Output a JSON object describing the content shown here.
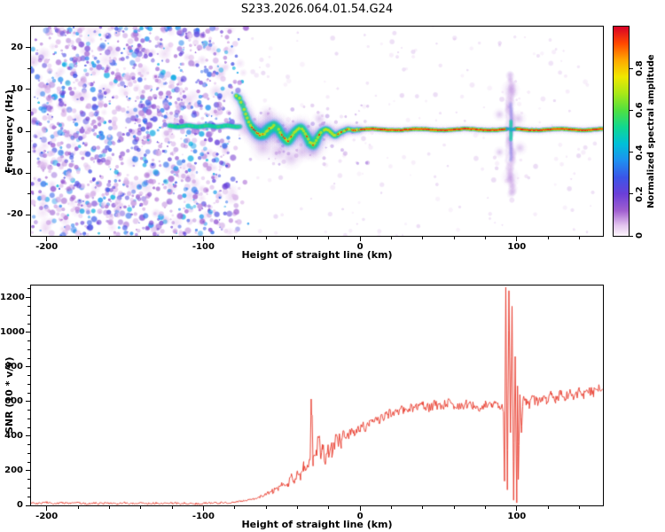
{
  "title": "S233.2026.064.01.54.G24",
  "colorbar": {
    "label": "Normalized spectral amplitude",
    "ticks": [
      0,
      0.2,
      0.4,
      0.6,
      0.8
    ],
    "tick_labels": [
      "0",
      "0.2",
      "0.4",
      "0.6",
      "0.8"
    ],
    "range": [
      0,
      1
    ],
    "stops": [
      {
        "v": 0.0,
        "c": "#fdf6fc"
      },
      {
        "v": 0.05,
        "c": "#e3c4ee"
      },
      {
        "v": 0.12,
        "c": "#a05fd0"
      },
      {
        "v": 0.2,
        "c": "#6b3fd8"
      },
      {
        "v": 0.28,
        "c": "#3b55e8"
      },
      {
        "v": 0.36,
        "c": "#1e90f0"
      },
      {
        "v": 0.44,
        "c": "#00c0d8"
      },
      {
        "v": 0.52,
        "c": "#10d890"
      },
      {
        "v": 0.6,
        "c": "#50e040"
      },
      {
        "v": 0.68,
        "c": "#a8e818"
      },
      {
        "v": 0.76,
        "c": "#f0e800"
      },
      {
        "v": 0.84,
        "c": "#ffa800"
      },
      {
        "v": 0.92,
        "c": "#ff4800"
      },
      {
        "v": 1.0,
        "c": "#d80028"
      }
    ]
  },
  "top_panel": {
    "xlabel": "Height of straight line (km)",
    "ylabel": "Frequency (Hz)",
    "xlim": [
      -210,
      155
    ],
    "ylim": [
      -25,
      25
    ],
    "xticks": [
      -200,
      -100,
      0,
      100
    ],
    "yticks": [
      -20,
      -10,
      0,
      10,
      20
    ],
    "x_minor_step": 20,
    "y_minor_step": 5
  },
  "bottom_panel": {
    "xlabel": "Height of straight line (km)",
    "ylabel": "SNR (10 * v/v)",
    "xlim": [
      -210,
      155
    ],
    "ylim": [
      0,
      1270
    ],
    "xticks": [
      -200,
      -100,
      0,
      100
    ],
    "yticks": [
      0,
      200,
      400,
      600,
      800,
      1000,
      1200
    ],
    "x_minor_step": 20,
    "y_minor_step": 50
  },
  "chart_data": [
    {
      "type": "heatmap",
      "title": "S233.2026.064.01.54.G24",
      "xlabel": "Height of straight line (km)",
      "ylabel": "Frequency (Hz)",
      "colorbar_label": "Normalized spectral amplitude",
      "xlim": [
        -210,
        155
      ],
      "ylim": [
        -25,
        25
      ],
      "colormap": "rainbow",
      "noise_region": {
        "x_start": -210,
        "x_end": -70,
        "amplitude_range": [
          0.05,
          0.42
        ]
      },
      "sparse_noise": {
        "x_start": -70,
        "x_end": 155,
        "amplitude_range": [
          0.03,
          0.09
        ]
      },
      "pre_signal_bar": {
        "x_start": -122,
        "x_end": -76,
        "freq": 1.2,
        "amplitude": 0.6
      },
      "trace": [
        [
          -79,
          8.5,
          1.6
        ],
        [
          -77,
          7.8,
          1.8
        ],
        [
          -75,
          6.2,
          1.8
        ],
        [
          -73,
          4.2,
          2.0
        ],
        [
          -71,
          2.2,
          2.2
        ],
        [
          -69,
          0.9,
          2.4
        ],
        [
          -67,
          0.0,
          2.6
        ],
        [
          -64,
          -0.9,
          2.8
        ],
        [
          -61,
          -0.6,
          3.0
        ],
        [
          -58,
          0.6,
          3.0
        ],
        [
          -55,
          1.3,
          2.8
        ],
        [
          -52,
          0.4,
          2.6
        ],
        [
          -50,
          -0.8,
          2.6
        ],
        [
          -48,
          -1.8,
          2.6
        ],
        [
          -46,
          -2.3,
          2.8
        ],
        [
          -44,
          -1.4,
          2.8
        ],
        [
          -42,
          -0.4,
          2.6
        ],
        [
          -40,
          0.4,
          2.4
        ],
        [
          -38,
          0.9,
          2.4
        ],
        [
          -36,
          0.1,
          2.4
        ],
        [
          -34,
          -1.2,
          2.6
        ],
        [
          -32,
          -2.6,
          2.8
        ],
        [
          -30,
          -3.2,
          2.8
        ],
        [
          -28,
          -2.2,
          2.6
        ],
        [
          -26,
          -0.9,
          2.2
        ],
        [
          -24,
          0.1,
          2.0
        ],
        [
          -22,
          0.5,
          1.8
        ],
        [
          -20,
          0.1,
          1.8
        ],
        [
          -18,
          -0.6,
          1.8
        ],
        [
          -16,
          -1.1,
          1.8
        ],
        [
          -14,
          -0.7,
          1.6
        ],
        [
          -12,
          -0.2,
          1.6
        ],
        [
          -10,
          0.2,
          1.5
        ],
        [
          -8,
          0.5,
          1.5
        ],
        [
          -6,
          0.3,
          1.4
        ],
        [
          -4,
          0.2,
          1.4
        ],
        [
          -2,
          0.3,
          1.4
        ],
        [
          0,
          0.4,
          1.4
        ]
      ],
      "red_zones": [
        [
          -70,
          -58
        ],
        [
          -50,
          -44
        ],
        [
          -34,
          -25
        ],
        [
          -15,
          0
        ]
      ],
      "flat_line": {
        "x_start": 0,
        "x_end": 155,
        "freq": 0.4,
        "amplitude": 0.95,
        "gap": [
          93.5,
          99
        ]
      },
      "disturbance": {
        "x": 96.3,
        "freq_extent": [
          -15,
          14
        ]
      },
      "halo_blobs": [
        [
          -74,
          3.5,
          3
        ],
        [
          -62,
          -4,
          3.5
        ],
        [
          -52,
          -5,
          3.2
        ],
        [
          -44,
          -6.5,
          3
        ],
        [
          -37,
          -5,
          2.8
        ],
        [
          -59,
          4,
          2.5
        ],
        [
          -30,
          -5,
          2.5
        ],
        [
          -26,
          3,
          2
        ],
        [
          89,
          4,
          1.8
        ],
        [
          89,
          -5,
          1.6
        ],
        [
          101,
          3,
          2.2
        ],
        [
          102,
          -4,
          2
        ],
        [
          96,
          10,
          2.5
        ],
        [
          96,
          -11,
          2.5
        ]
      ]
    },
    {
      "type": "line",
      "xlabel": "Height of straight line (km)",
      "ylabel": "SNR (10 * v/v)",
      "xlim": [
        -210,
        155
      ],
      "ylim": [
        0,
        1270
      ],
      "color": "#e8392a",
      "no_jitter_range": [
        91,
        104
      ],
      "anchors": [
        [
          -210,
          14
        ],
        [
          -205,
          10
        ],
        [
          -200,
          16
        ],
        [
          -195,
          9
        ],
        [
          -190,
          14
        ],
        [
          -185,
          11
        ],
        [
          -180,
          15
        ],
        [
          -175,
          9
        ],
        [
          -170,
          13
        ],
        [
          -165,
          10
        ],
        [
          -160,
          14
        ],
        [
          -155,
          10
        ],
        [
          -150,
          13
        ],
        [
          -145,
          9
        ],
        [
          -140,
          14
        ],
        [
          -135,
          10
        ],
        [
          -130,
          13
        ],
        [
          -125,
          10
        ],
        [
          -120,
          13
        ],
        [
          -115,
          10
        ],
        [
          -110,
          13
        ],
        [
          -105,
          10
        ],
        [
          -100,
          12
        ],
        [
          -95,
          13
        ],
        [
          -90,
          14
        ],
        [
          -85,
          16
        ],
        [
          -80,
          20
        ],
        [
          -76,
          24
        ],
        [
          -72,
          30
        ],
        [
          -68,
          38
        ],
        [
          -64,
          48
        ],
        [
          -60,
          62
        ],
        [
          -56,
          80
        ],
        [
          -52,
          100
        ],
        [
          -50,
          115
        ],
        [
          -48,
          135
        ],
        [
          -46,
          120
        ],
        [
          -44,
          160
        ],
        [
          -42,
          145
        ],
        [
          -40,
          185
        ],
        [
          -38,
          165
        ],
        [
          -36,
          215
        ],
        [
          -34,
          190
        ],
        [
          -32,
          245
        ],
        [
          -31,
          600
        ],
        [
          -30,
          240
        ],
        [
          -28,
          270
        ],
        [
          -26,
          480
        ],
        [
          -25,
          260
        ],
        [
          -24,
          300
        ],
        [
          -22,
          285
        ],
        [
          -20,
          330
        ],
        [
          -18,
          310
        ],
        [
          -16,
          360
        ],
        [
          -14,
          345
        ],
        [
          -12,
          390
        ],
        [
          -10,
          420
        ],
        [
          -8,
          400
        ],
        [
          -6,
          430
        ],
        [
          -4,
          415
        ],
        [
          -2,
          440
        ],
        [
          0,
          450
        ],
        [
          2,
          460
        ],
        [
          4,
          445
        ],
        [
          6,
          470
        ],
        [
          8,
          480
        ],
        [
          10,
          495
        ],
        [
          12,
          485
        ],
        [
          14,
          505
        ],
        [
          16,
          515
        ],
        [
          18,
          525
        ],
        [
          20,
          535
        ],
        [
          24,
          545
        ],
        [
          28,
          555
        ],
        [
          32,
          560
        ],
        [
          36,
          565
        ],
        [
          40,
          575
        ],
        [
          44,
          560
        ],
        [
          48,
          585
        ],
        [
          52,
          570
        ],
        [
          56,
          595
        ],
        [
          60,
          580
        ],
        [
          64,
          565
        ],
        [
          68,
          590
        ],
        [
          72,
          575
        ],
        [
          76,
          565
        ],
        [
          80,
          580
        ],
        [
          84,
          570
        ],
        [
          86,
          585
        ],
        [
          88,
          565
        ],
        [
          90,
          575
        ],
        [
          91.5,
          540
        ],
        [
          92.2,
          140
        ],
        [
          93,
          1260
        ],
        [
          94,
          90
        ],
        [
          95,
          1240
        ],
        [
          96,
          420
        ],
        [
          97,
          1150
        ],
        [
          98,
          30
        ],
        [
          99,
          860
        ],
        [
          100,
          15
        ],
        [
          100.5,
          690
        ],
        [
          101,
          150
        ],
        [
          102,
          640
        ],
        [
          103,
          420
        ],
        [
          104,
          610
        ],
        [
          106,
          590
        ],
        [
          108,
          575
        ],
        [
          110,
          615
        ],
        [
          113,
          595
        ],
        [
          116,
          630
        ],
        [
          119,
          605
        ],
        [
          122,
          640
        ],
        [
          125,
          615
        ],
        [
          128,
          645
        ],
        [
          131,
          620
        ],
        [
          134,
          655
        ],
        [
          137,
          630
        ],
        [
          140,
          660
        ],
        [
          143,
          640
        ],
        [
          146,
          665
        ],
        [
          149,
          650
        ],
        [
          152,
          675
        ],
        [
          155,
          695
        ]
      ]
    }
  ]
}
